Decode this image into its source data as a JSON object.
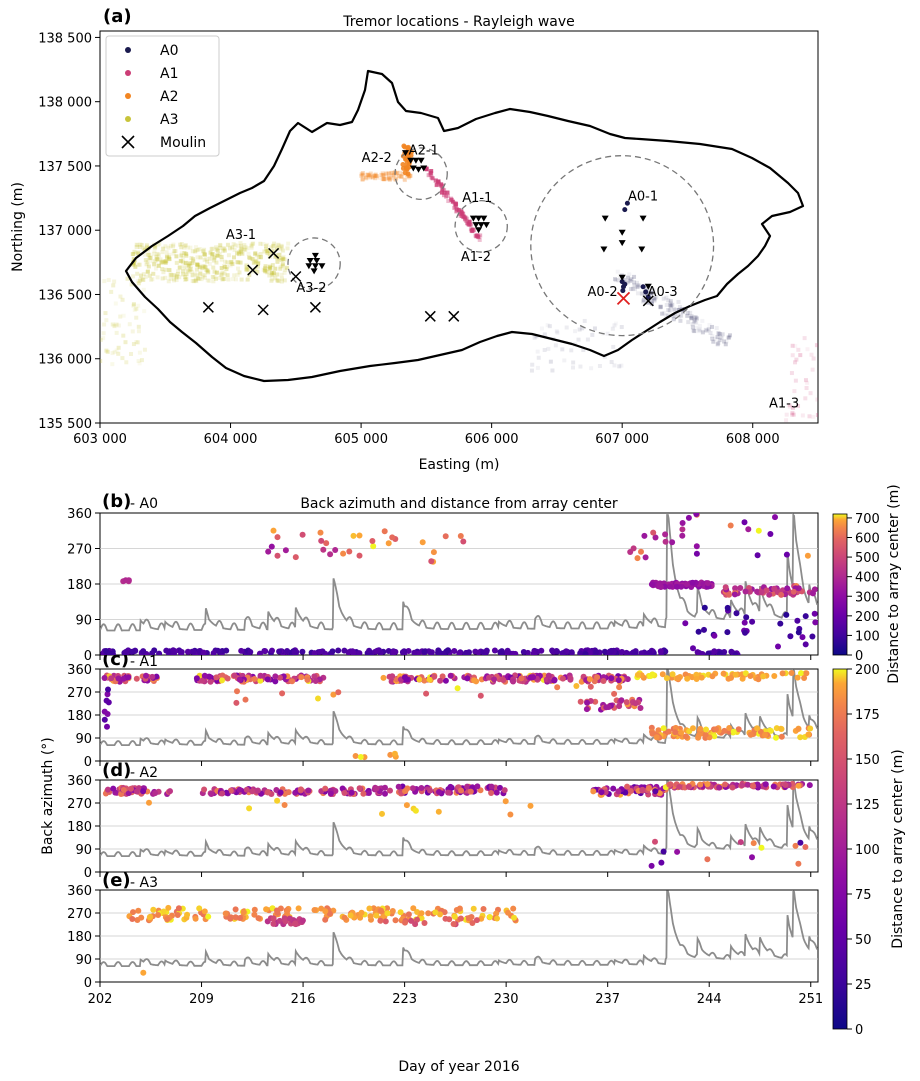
{
  "panel_a": {
    "letter": "(a)",
    "title": "Tremor locations - Rayleigh wave",
    "xlabel": "Easting (m)",
    "ylabel": "Northing (m)",
    "xticks": [
      "603 000",
      "604 000",
      "605 000",
      "606 000",
      "607 000",
      "608 000"
    ],
    "yticks": [
      "135 500",
      "136 000",
      "136 500",
      "137 000",
      "137 500",
      "138 000",
      "138 500"
    ],
    "legend": [
      "A0",
      "A1",
      "A2",
      "A3",
      "Moulin"
    ],
    "labels": [
      "A0-1",
      "A0-2",
      "A0-3",
      "A1-1",
      "A1-2",
      "A2-1",
      "A2-2",
      "A3-1",
      "A3-2",
      "A1-3"
    ]
  },
  "panel_b": {
    "letter": "(b)",
    "name": "- A0",
    "title": "Back azimuth and distance from array center"
  },
  "panel_c": {
    "letter": "(c)",
    "name": "- A1"
  },
  "panel_d": {
    "letter": "(d)",
    "name": "- A2"
  },
  "panel_e": {
    "letter": "(e)",
    "name": "- A3"
  },
  "bottom_xlabel": "Day of year 2016",
  "bottom_ylabel": "Back azimuth (°)",
  "colorbar1": {
    "label": "Distance to array center (m)",
    "ticks": [
      "0",
      "100",
      "200",
      "300",
      "400",
      "500",
      "600",
      "700"
    ]
  },
  "colorbar2": {
    "label": "Distance to array center (m)",
    "ticks": [
      "0",
      "25",
      "50",
      "75",
      "100",
      "125",
      "150",
      "175",
      "200"
    ]
  },
  "time_ticks": [
    "202",
    "209",
    "216",
    "223",
    "230",
    "237",
    "244",
    "251"
  ],
  "baz_ticks": [
    "0",
    "90",
    "180",
    "270",
    "360"
  ],
  "colors": {
    "A0": "#1a1a4e",
    "A1": "#cc3d76",
    "A2": "#f28522",
    "A3": "#c8c43a",
    "moulin": "#000000",
    "discharge": "#8c8c8c"
  },
  "chart_data": [
    {
      "type": "scatter",
      "panel": "(a)",
      "title": "Tremor locations - Rayleigh wave",
      "xlabel": "Easting (m)",
      "ylabel": "Northing (m)",
      "xlim": [
        603000,
        608500
      ],
      "ylim": [
        135500,
        138550
      ],
      "legend_position": "top-left",
      "moulins": [
        [
          604330,
          136820
        ],
        [
          604170,
          136690
        ],
        [
          604500,
          136640
        ],
        [
          603830,
          136400
        ],
        [
          604250,
          136380
        ],
        [
          604650,
          136400
        ],
        [
          605530,
          136330
        ],
        [
          605710,
          136330
        ],
        [
          607200,
          136450
        ]
      ],
      "arrays": [
        {
          "name": "A0",
          "center": [
            607000,
            136880
          ],
          "radius": 700
        },
        {
          "name": "A1",
          "center": [
            605920,
            137030
          ],
          "radius": 200
        },
        {
          "name": "A2",
          "center": [
            605460,
            137440
          ],
          "radius": 200
        },
        {
          "name": "A3",
          "center": [
            604640,
            136740
          ],
          "radius": 200
        }
      ],
      "annotations": [
        {
          "text": "A0-1",
          "xy": [
            607160,
            137230
          ]
        },
        {
          "text": "A0-2",
          "xy": [
            606850,
            136490
          ]
        },
        {
          "text": "A0-3",
          "xy": [
            607310,
            136490
          ]
        },
        {
          "text": "A1-1",
          "xy": [
            605890,
            137220
          ]
        },
        {
          "text": "A1-2",
          "xy": [
            605880,
            136760
          ]
        },
        {
          "text": "A2-1",
          "xy": [
            605480,
            137590
          ]
        },
        {
          "text": "A2-2",
          "xy": [
            605120,
            137530
          ]
        },
        {
          "text": "A3-1",
          "xy": [
            604080,
            136930
          ]
        },
        {
          "text": "A3-2",
          "xy": [
            604620,
            136520
          ]
        },
        {
          "text": "A1-3",
          "xy": [
            608240,
            135620
          ]
        }
      ]
    },
    {
      "type": "scatter",
      "panel": "(b)",
      "xlim": [
        202,
        251.5
      ],
      "ylim": [
        0,
        360
      ],
      "colorbar_range": [
        0,
        700
      ],
      "clusters": [
        {
          "from": 202.2,
          "to": 241.0,
          "baz": [
            2,
            12
          ],
          "dist": [
            80,
            160
          ],
          "n": 240
        },
        {
          "from": 203.2,
          "to": 204.5,
          "baz": [
            185,
            192
          ],
          "dist": [
            380,
            420
          ],
          "n": 4
        },
        {
          "from": 213.4,
          "to": 227.2,
          "baz": [
            235,
            320
          ],
          "dist": [
            500,
            700
          ],
          "n": 26
        },
        {
          "from": 213.5,
          "to": 219.0,
          "baz": [
            250,
            275
          ],
          "dist": [
            300,
            450
          ],
          "n": 6
        },
        {
          "from": 237.2,
          "to": 241.0,
          "baz": [
            230,
            330
          ],
          "dist": [
            100,
            700
          ],
          "n": 10
        },
        {
          "from": 240.0,
          "to": 244.2,
          "baz": [
            172,
            184
          ],
          "dist": [
            280,
            360
          ],
          "n": 65
        },
        {
          "from": 245.0,
          "to": 251.4,
          "baz": [
            150,
            175
          ],
          "dist": [
            300,
            650
          ],
          "n": 55
        },
        {
          "from": 241.0,
          "to": 251.4,
          "baz": [
            0,
            130
          ],
          "dist": [
            50,
            250
          ],
          "n": 30
        },
        {
          "from": 241.0,
          "to": 251.4,
          "baz": [
            240,
            360
          ],
          "dist": [
            150,
            700
          ],
          "n": 18
        },
        {
          "from": 243.0,
          "to": 246.0,
          "baz": [
            0,
            10
          ],
          "dist": [
            80,
            160
          ],
          "n": 25
        }
      ],
      "discharge_overlay": "gray line, arbitrary units plotted on the back-azimuth axis"
    },
    {
      "type": "scatter",
      "panel": "(c)",
      "xlim": [
        202,
        251.5
      ],
      "ylim": [
        0,
        360
      ],
      "colorbar_range": [
        0,
        200
      ],
      "clusters": [
        {
          "from": 202.3,
          "to": 206.0,
          "baz": [
            310,
            335
          ],
          "dist": [
            60,
            200
          ],
          "n": 40
        },
        {
          "from": 202.3,
          "to": 202.7,
          "baz": [
            130,
            300
          ],
          "dist": [
            30,
            80
          ],
          "n": 8
        },
        {
          "from": 208.5,
          "to": 217.5,
          "baz": [
            310,
            335
          ],
          "dist": [
            60,
            200
          ],
          "n": 90
        },
        {
          "from": 221.5,
          "to": 226.5,
          "baz": [
            310,
            335
          ],
          "dist": [
            60,
            200
          ],
          "n": 45
        },
        {
          "from": 227.0,
          "to": 238.5,
          "baz": [
            310,
            335
          ],
          "dist": [
            60,
            200
          ],
          "n": 120
        },
        {
          "from": 235.5,
          "to": 239.5,
          "baz": [
            200,
            240
          ],
          "dist": [
            80,
            190
          ],
          "n": 30
        },
        {
          "from": 238.5,
          "to": 251.0,
          "baz": [
            320,
            345
          ],
          "dist": [
            180,
            200
          ],
          "n": 60
        },
        {
          "from": 240.0,
          "to": 251.0,
          "baz": [
            90,
            130
          ],
          "dist": [
            170,
            200
          ],
          "n": 90
        },
        {
          "from": 211.0,
          "to": 238.0,
          "baz": [
            220,
            300
          ],
          "dist": [
            150,
            200
          ],
          "n": 16
        },
        {
          "from": 219.0,
          "to": 224.0,
          "baz": [
            15,
            40
          ],
          "dist": [
            180,
            200
          ],
          "n": 6
        }
      ],
      "discharge_overlay": "gray line, arbitrary units plotted on the back-azimuth axis"
    },
    {
      "type": "scatter",
      "panel": "(d)",
      "xlim": [
        202,
        251.5
      ],
      "ylim": [
        0,
        360
      ],
      "colorbar_range": [
        0,
        200
      ],
      "clusters": [
        {
          "from": 202.3,
          "to": 207.0,
          "baz": [
            305,
            330
          ],
          "dist": [
            70,
            180
          ],
          "n": 45
        },
        {
          "from": 209.0,
          "to": 216.5,
          "baz": [
            305,
            325
          ],
          "dist": [
            70,
            180
          ],
          "n": 70
        },
        {
          "from": 217.0,
          "to": 222.0,
          "baz": [
            305,
            330
          ],
          "dist": [
            70,
            180
          ],
          "n": 45
        },
        {
          "from": 222.5,
          "to": 230.0,
          "baz": [
            305,
            335
          ],
          "dist": [
            50,
            180
          ],
          "n": 70
        },
        {
          "from": 236.0,
          "to": 241.0,
          "baz": [
            300,
            335
          ],
          "dist": [
            40,
            200
          ],
          "n": 60
        },
        {
          "from": 241.0,
          "to": 251.0,
          "baz": [
            330,
            345
          ],
          "dist": [
            80,
            200
          ],
          "n": 90
        },
        {
          "from": 205.0,
          "to": 232.0,
          "baz": [
            220,
            280
          ],
          "dist": [
            180,
            200
          ],
          "n": 12
        },
        {
          "from": 240.0,
          "to": 251.0,
          "baz": [
            20,
            120
          ],
          "dist": [
            30,
            200
          ],
          "n": 14
        }
      ],
      "discharge_overlay": "gray line, arbitrary units plotted on the back-azimuth axis"
    },
    {
      "type": "scatter",
      "panel": "(e)",
      "xlim": [
        202,
        251.5
      ],
      "ylim": [
        0,
        360
      ],
      "colorbar_range": [
        0,
        200
      ],
      "clusters": [
        {
          "from": 204.0,
          "to": 231.0,
          "baz": [
            240,
            290
          ],
          "dist": [
            170,
            200
          ],
          "n": 180
        },
        {
          "from": 213.5,
          "to": 216.0,
          "baz": [
            225,
            250
          ],
          "dist": [
            110,
            150
          ],
          "n": 25
        },
        {
          "from": 218.0,
          "to": 228.0,
          "baz": [
            225,
            250
          ],
          "dist": [
            140,
            170
          ],
          "n": 15
        },
        {
          "from": 204.0,
          "to": 205.0,
          "baz": [
            35,
            40
          ],
          "dist": [
            190,
            200
          ],
          "n": 1
        }
      ],
      "discharge_overlay": "gray line, arbitrary units plotted on the back-azimuth axis"
    }
  ]
}
